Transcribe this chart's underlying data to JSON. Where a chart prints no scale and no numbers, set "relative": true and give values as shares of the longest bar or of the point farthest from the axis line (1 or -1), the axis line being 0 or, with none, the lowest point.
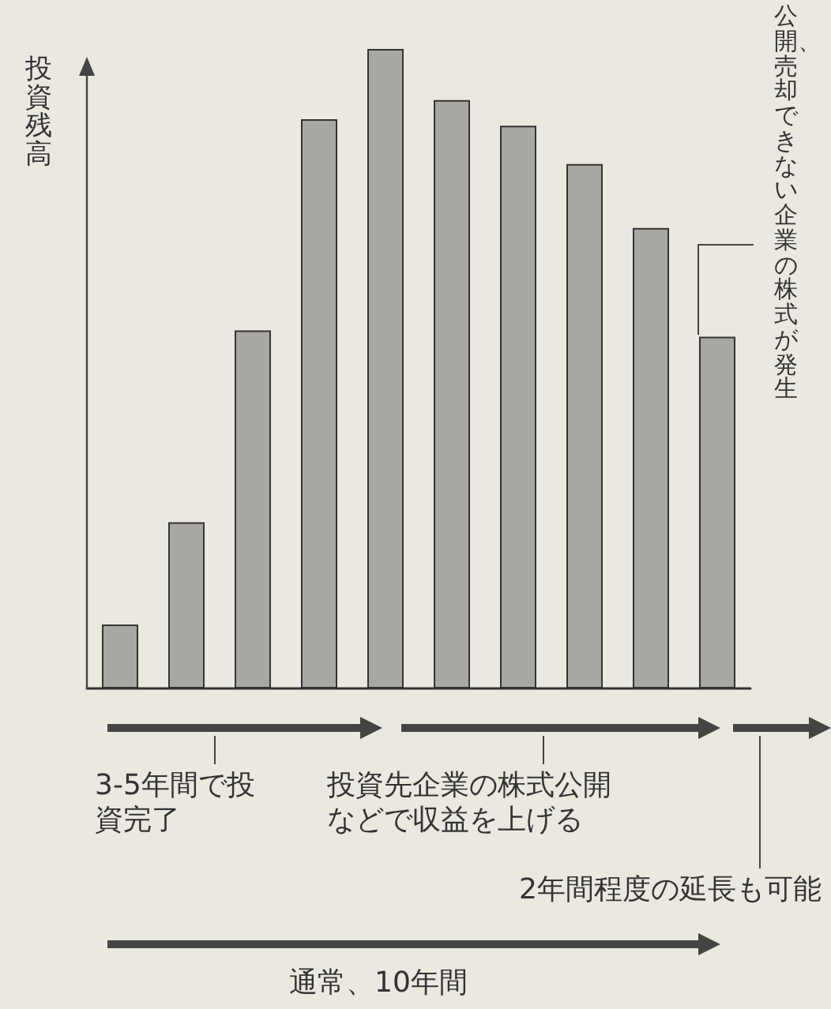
{
  "chart_data": {
    "type": "bar",
    "relative": true,
    "ylabel": "投資残高",
    "categories": [
      null,
      null,
      null,
      null,
      null,
      null,
      null,
      null,
      null,
      null
    ],
    "values": [
      0.1,
      0.26,
      0.56,
      0.89,
      1,
      0.92,
      0.88,
      0.82,
      0.72,
      0.55
    ],
    "color": "#a9a7a2",
    "annotations": [
      "公開、売却できない企業の株式が発生",
      "3-5年間で投資完了",
      "投資先企業の株式公開などで収益を上げる",
      "2年間程度の延長も可能",
      "通常、10年間"
    ]
  }
}
